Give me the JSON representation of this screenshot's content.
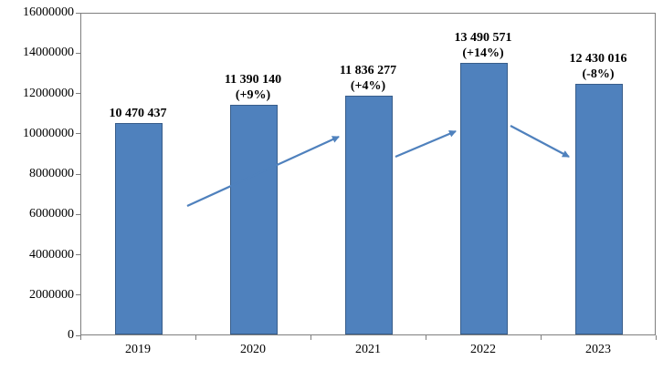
{
  "chart_data": {
    "type": "bar",
    "title": "",
    "xlabel": "",
    "ylabel": "",
    "categories": [
      "2019",
      "2020",
      "2021",
      "2022",
      "2023"
    ],
    "values": [
      10470437,
      11390140,
      11836277,
      13490571,
      12430016
    ],
    "bar_labels": [
      {
        "value": "10 470 437",
        "pct": ""
      },
      {
        "value": "11 390 140",
        "pct": "(+9%)"
      },
      {
        "value": "11 836 277",
        "pct": "(+4%)"
      },
      {
        "value": "13 490 571",
        "pct": "(+14%)"
      },
      {
        "value": "12 430 016",
        "pct": "(-8%)"
      }
    ],
    "y_axis": {
      "min": 0,
      "max": 16000000,
      "step": 2000000,
      "tick_labels": [
        "0",
        "2000000",
        "4000000",
        "6000000",
        "8000000",
        "10000000",
        "12000000",
        "14000000",
        "16000000"
      ]
    },
    "grid": false,
    "legend": false,
    "bar_color": "#4F81BD",
    "bar_border_color": "#385D8A",
    "arrow_color": "#4F81BD",
    "trend_arrows": [
      "up",
      "up",
      "down"
    ]
  }
}
